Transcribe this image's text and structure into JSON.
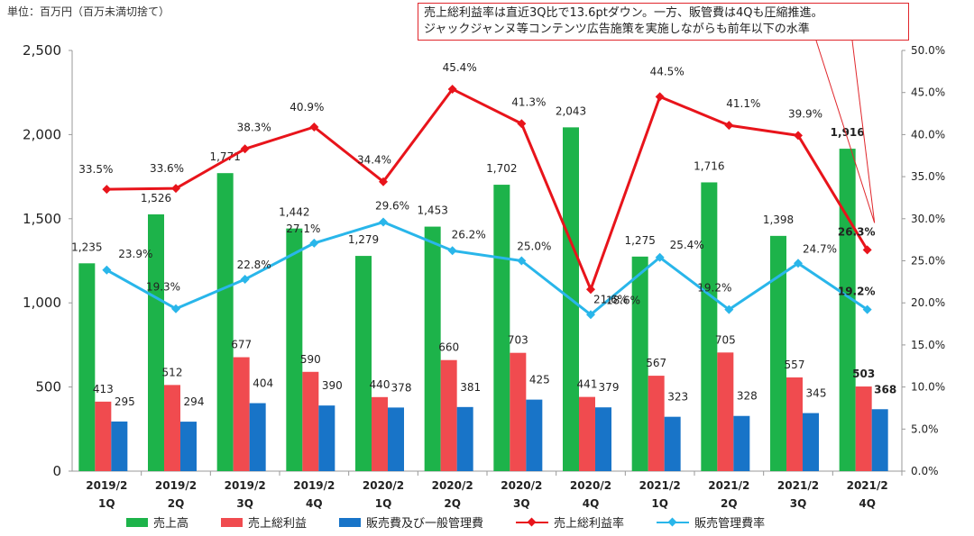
{
  "unit_note": "単位：百万円（百万未満切捨て）",
  "callout": {
    "line1": "売上総利益率は直近3Q比で13.6ptダウン。一方、販管費は4Qも圧縮推進。",
    "line2": "ジャックジャンヌ等コンテンツ広告施策を実施しながらも前年以下の水準"
  },
  "colors": {
    "sales": "#1db34a",
    "gross_profit": "#f04b4f",
    "sga": "#1874c8",
    "gross_margin": "#e8141b",
    "sga_ratio": "#29b6ea"
  },
  "chart_data": {
    "type": "bar",
    "categories": [
      [
        "2019/2",
        "1Q"
      ],
      [
        "2019/2",
        "2Q"
      ],
      [
        "2019/2",
        "3Q"
      ],
      [
        "2019/2",
        "4Q"
      ],
      [
        "2020/2",
        "1Q"
      ],
      [
        "2020/2",
        "2Q"
      ],
      [
        "2020/2",
        "3Q"
      ],
      [
        "2020/2",
        "4Q"
      ],
      [
        "2021/2",
        "1Q"
      ],
      [
        "2021/2",
        "2Q"
      ],
      [
        "2021/2",
        "3Q"
      ],
      [
        "2021/2",
        "4Q"
      ]
    ],
    "bar_series": [
      {
        "name": "売上高",
        "color": "#1db34a",
        "values": [
          1235,
          1526,
          1771,
          1442,
          1279,
          1453,
          1702,
          2043,
          1275,
          1716,
          1398,
          1916
        ],
        "labels": [
          "1,235",
          "1,526",
          "1,771",
          "1,442",
          "1,279",
          "1,453",
          "1,702",
          "2,043",
          "1,275",
          "1,716",
          "1,398",
          "1,916"
        ]
      },
      {
        "name": "売上総利益",
        "color": "#f04b4f",
        "values": [
          413,
          512,
          677,
          590,
          440,
          660,
          703,
          441,
          567,
          705,
          557,
          503
        ],
        "labels": [
          "413",
          "512",
          "677",
          "590",
          "440",
          "660",
          "703",
          "441",
          "567",
          "705",
          "557",
          "503"
        ]
      },
      {
        "name": "販売費及び一般管理費",
        "color": "#1874c8",
        "values": [
          295,
          294,
          404,
          390,
          378,
          381,
          425,
          379,
          323,
          328,
          345,
          368
        ],
        "labels": [
          "295",
          "294",
          "404",
          "390",
          "378",
          "381",
          "425",
          "379",
          "323",
          "328",
          "345",
          "368"
        ]
      }
    ],
    "line_series": [
      {
        "name": "売上総利益率",
        "color": "#e8141b",
        "marker": "diamond",
        "values": [
          33.5,
          33.6,
          38.3,
          40.9,
          34.4,
          45.4,
          41.3,
          21.6,
          44.5,
          41.1,
          39.9,
          26.3
        ],
        "labels": [
          "33.5%",
          "33.6%",
          "38.3%",
          "40.9%",
          "34.4%",
          "45.4%",
          "41.3%",
          "21.6%",
          "44.5%",
          "41.1%",
          "39.9%",
          "26.3%"
        ]
      },
      {
        "name": "販売管理費率",
        "color": "#29b6ea",
        "marker": "diamond",
        "values": [
          23.9,
          19.3,
          22.8,
          27.1,
          29.6,
          26.2,
          25.0,
          18.6,
          25.4,
          19.2,
          24.7,
          19.2
        ],
        "labels": [
          "23.9%",
          "19.3%",
          "22.8%",
          "27.1%",
          "29.6%",
          "26.2%",
          "25.0%",
          "18.6%",
          "25.4%",
          "19.2%",
          "24.7%",
          "19.2%"
        ]
      }
    ],
    "y_left": {
      "min": 0,
      "max": 2500,
      "ticks": [
        "0",
        "500",
        "1,000",
        "1,500",
        "2,000",
        "2,500"
      ]
    },
    "y_right": {
      "min": 0,
      "max": 50,
      "ticks": [
        "0.0%",
        "5.0%",
        "10.0%",
        "15.0%",
        "20.0%",
        "25.0%",
        "30.0%",
        "35.0%",
        "40.0%",
        "45.0%",
        "50.0%"
      ]
    },
    "bold_last_labels": true,
    "legend_position": "bottom"
  }
}
